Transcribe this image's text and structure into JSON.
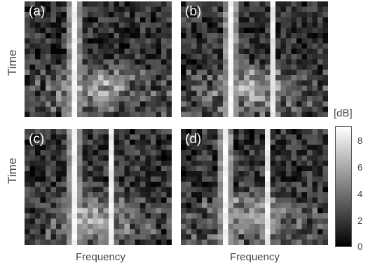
{
  "chart_data": [
    {
      "type": "heatmap",
      "panel_label": "(a)",
      "xlabel": "",
      "ylabel": "Time",
      "seed": 11
    },
    {
      "type": "heatmap",
      "panel_label": "(b)",
      "xlabel": "",
      "ylabel": "",
      "seed": 23
    },
    {
      "type": "heatmap",
      "panel_label": "(c)",
      "xlabel": "Frequency",
      "ylabel": "Time",
      "seed": 37
    },
    {
      "type": "heatmap",
      "panel_label": "(d)",
      "xlabel": "Frequency",
      "ylabel": "",
      "seed": 53
    }
  ],
  "colorbar": {
    "unit": "[dB]",
    "range": [
      0,
      9
    ],
    "ticks": [
      "8",
      "6",
      "4",
      "2",
      "0"
    ],
    "colormap": "gray"
  },
  "axes": {
    "y_label": "Time",
    "x_label": "Frequency"
  }
}
